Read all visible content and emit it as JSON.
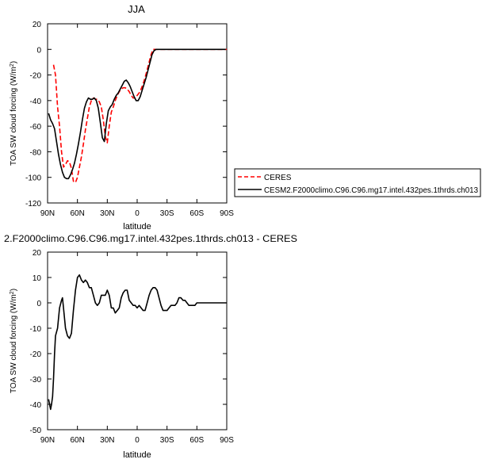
{
  "colors": {
    "ceres": "#ff0000",
    "model": "#000000"
  },
  "chart_data": [
    {
      "type": "line",
      "title": "JJA",
      "xlabel": "latitude",
      "ylabel_main": "TOA SW cloud forcing (W/m",
      "ylabel_sup": "2",
      "ylabel_close": ")",
      "xlim": [
        90,
        -90
      ],
      "ylim": [
        -120,
        20
      ],
      "x_ticks": [
        {
          "value": 90,
          "label": "90N"
        },
        {
          "value": 60,
          "label": "60N"
        },
        {
          "value": 30,
          "label": "30N"
        },
        {
          "value": 0,
          "label": "0"
        },
        {
          "value": -30,
          "label": "30S"
        },
        {
          "value": -60,
          "label": "60S"
        },
        {
          "value": -90,
          "label": "90S"
        }
      ],
      "y_ticks": [
        20,
        0,
        -20,
        -40,
        -60,
        -80,
        -100,
        -120
      ],
      "legend": {
        "placement": "right"
      },
      "series": [
        {
          "name": "CERES",
          "style": "dashed",
          "color": "#ff0000",
          "x": [
            84,
            82,
            80,
            78,
            76,
            74,
            72,
            70,
            68,
            66,
            64,
            62,
            60,
            58,
            56,
            54,
            52,
            50,
            48,
            46,
            44,
            42,
            40,
            38,
            36,
            34,
            32,
            30,
            28,
            26,
            24,
            22,
            20,
            18,
            16,
            14,
            12,
            10,
            8,
            6,
            4,
            2,
            0,
            -2,
            -4,
            -6,
            -8,
            -10,
            -12,
            -14,
            -16,
            -18,
            -20,
            -22,
            -24,
            -26,
            -28,
            -30,
            -32,
            -34,
            -36,
            -38,
            -40,
            -42,
            -44,
            -46,
            -48,
            -50,
            -52,
            -54,
            -56,
            -58,
            -60,
            -62,
            -64,
            -66,
            -68,
            -70,
            -72,
            -74,
            -76,
            -78,
            -80,
            -82,
            -84,
            -86,
            -88,
            -90
          ],
          "values": [
            -12,
            -20,
            -45,
            -60,
            -80,
            -92,
            -90,
            -87,
            -88,
            -93,
            -103,
            -104,
            -100,
            -92,
            -84,
            -74,
            -63,
            -54,
            -45,
            -40,
            -38,
            -39,
            -39,
            -41,
            -45,
            -55,
            -68,
            -73,
            -60,
            -49,
            -45,
            -40,
            -36,
            -33,
            -31,
            -30,
            -30,
            -31,
            -33,
            -36,
            -38,
            -38,
            -36,
            -34,
            -31,
            -27,
            -22,
            -16,
            -10,
            -4,
            0,
            0,
            0,
            0,
            0,
            0,
            0,
            0,
            0,
            0,
            0,
            0,
            0,
            0,
            0,
            0,
            0,
            0,
            0,
            0,
            0,
            0,
            0,
            0,
            0,
            0,
            0,
            0,
            0,
            0,
            0,
            0,
            0,
            0,
            0,
            0,
            0,
            0
          ]
        },
        {
          "name": "CESM2.F2000climo.C96.C96.mg17.intel.432pes.1thrds.ch013",
          "style": "solid",
          "color": "#000000",
          "x": [
            89,
            87,
            85,
            83,
            81,
            79,
            77,
            75,
            73,
            71,
            69,
            67,
            65,
            63,
            61,
            59,
            57,
            55,
            53,
            51,
            49,
            47,
            45,
            43,
            41,
            39,
            37,
            35,
            33,
            31,
            29,
            27,
            25,
            23,
            21,
            19,
            17,
            15,
            13,
            11,
            9,
            7,
            5,
            3,
            1,
            -1,
            -3,
            -5,
            -7,
            -9,
            -11,
            -13,
            -15,
            -17,
            -19,
            -21,
            -23,
            -25,
            -27,
            -29,
            -31,
            -33,
            -35,
            -37,
            -39,
            -41,
            -43,
            -45,
            -47,
            -49,
            -51,
            -53,
            -55,
            -57,
            -59,
            -61,
            -63,
            -65,
            -67,
            -69,
            -71,
            -73,
            -75,
            -77,
            -79,
            -81,
            -83,
            -85,
            -87,
            -89
          ],
          "values": [
            -50,
            -55,
            -58,
            -62,
            -72,
            -82,
            -90,
            -96,
            -100,
            -101,
            -101,
            -98,
            -94,
            -89,
            -82,
            -74,
            -65,
            -55,
            -46,
            -41,
            -38,
            -39,
            -39,
            -38,
            -40,
            -46,
            -57,
            -69,
            -72,
            -58,
            -48,
            -45,
            -43,
            -39,
            -36,
            -34,
            -31,
            -28,
            -25,
            -24,
            -26,
            -29,
            -33,
            -37,
            -40,
            -40,
            -37,
            -32,
            -27,
            -22,
            -16,
            -10,
            -4,
            -1,
            0,
            0,
            0,
            0,
            0,
            0,
            0,
            0,
            0,
            0,
            0,
            0,
            0,
            0,
            0,
            0,
            0,
            0,
            0,
            0,
            0,
            0,
            0,
            0,
            0,
            0,
            0,
            0,
            0,
            0,
            0,
            0,
            0,
            0,
            0,
            0
          ]
        }
      ]
    },
    {
      "type": "line",
      "title": "2.F2000climo.C96.C96.mg17.intel.432pes.1thrds.ch013 - CERES",
      "xlabel": "latitude",
      "ylabel_main": "TOA SW cloud forcing (W/m",
      "ylabel_sup": "2",
      "ylabel_close": ")",
      "xlim": [
        90,
        -90
      ],
      "ylim": [
        -50,
        20
      ],
      "x_ticks": [
        {
          "value": 90,
          "label": "90N"
        },
        {
          "value": 60,
          "label": "60N"
        },
        {
          "value": 30,
          "label": "30N"
        },
        {
          "value": 0,
          "label": "0"
        },
        {
          "value": -30,
          "label": "30S"
        },
        {
          "value": -60,
          "label": "60S"
        },
        {
          "value": -90,
          "label": "90S"
        }
      ],
      "y_ticks": [
        20,
        10,
        0,
        -10,
        -20,
        -30,
        -40,
        -50
      ],
      "series": [
        {
          "style": "solid",
          "color": "#000000",
          "x": [
            89,
            88,
            87,
            86,
            85,
            84,
            83,
            82,
            80,
            78,
            76,
            75,
            74,
            72,
            70,
            68,
            66,
            64,
            62,
            60,
            58,
            56,
            54,
            52,
            50,
            48,
            46,
            44,
            42,
            40,
            38,
            36,
            34,
            32,
            30,
            28,
            26,
            24,
            22,
            20,
            18,
            16,
            14,
            12,
            10,
            8,
            6,
            4,
            2,
            0,
            -2,
            -4,
            -6,
            -8,
            -10,
            -12,
            -14,
            -16,
            -18,
            -20,
            -22,
            -24,
            -26,
            -28,
            -30,
            -32,
            -34,
            -36,
            -38,
            -40,
            -42,
            -44,
            -46,
            -48,
            -50,
            -52,
            -54,
            -56,
            -58,
            -60,
            -62,
            -64,
            -66,
            -68,
            -70,
            -72,
            -74,
            -76,
            -78,
            -80,
            -82,
            -84,
            -86,
            -88,
            -90
          ],
          "values": [
            -38,
            -40,
            -42,
            -40,
            -37,
            -30,
            -20,
            -13,
            -10,
            -2,
            1,
            2,
            -2,
            -10,
            -13,
            -14,
            -12,
            -3,
            5,
            10,
            11,
            9,
            8,
            9,
            8,
            6,
            6,
            3,
            0,
            -1,
            0,
            3,
            3,
            3,
            5,
            3,
            -2,
            -2,
            -4,
            -3,
            -2,
            2,
            4,
            5,
            5,
            1,
            0,
            -1,
            -1,
            -2,
            -1,
            -2,
            -3,
            -3,
            0,
            3,
            5,
            6,
            6,
            5,
            2,
            -1,
            -3,
            -3,
            -3,
            -2,
            -1,
            -1,
            -1,
            0,
            2,
            2,
            1,
            1,
            0,
            -1,
            -1,
            -1,
            -1,
            0,
            0,
            0,
            0,
            0,
            0,
            0,
            0,
            0,
            0,
            0,
            0,
            0,
            0,
            0,
            0
          ]
        }
      ]
    }
  ]
}
